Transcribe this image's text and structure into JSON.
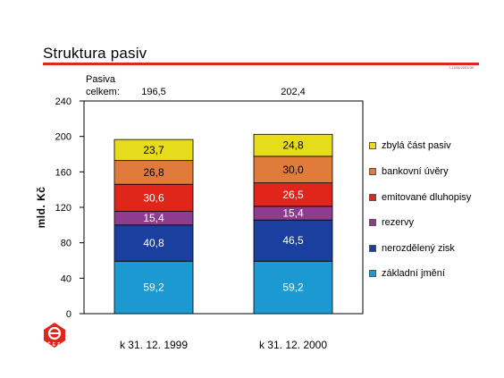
{
  "page": {
    "title": "Struktura pasiv",
    "code_text": "7-1034/2001/30"
  },
  "logo": {
    "text": "ČEZ"
  },
  "colors": {
    "title_rule": "#e0261a",
    "segments": [
      "#1a9ad0",
      "#1b3f9e",
      "#8e3d8e",
      "#e0261a",
      "#e07b3c",
      "#e6dc1c"
    ]
  },
  "chart_data": {
    "type": "bar",
    "stacked": true,
    "title": "Struktura pasiv",
    "ylabel": "mld. Kč",
    "ylim": [
      0,
      240
    ],
    "yticks": [
      "0",
      "40",
      "80",
      "120",
      "160",
      "200",
      "240"
    ],
    "categories": [
      "k 31. 12. 1999",
      "k 31. 12. 2000"
    ],
    "totals_label": "Pasiva celkem:",
    "totals": [
      "196,5",
      "202,4"
    ],
    "series": [
      {
        "name": "základní jmění",
        "values": [
          59.2,
          59.2
        ],
        "labels": [
          "59,2",
          "59,2"
        ]
      },
      {
        "name": "nerozdělený zisk",
        "values": [
          40.8,
          46.5
        ],
        "labels": [
          "40,8",
          "46,5"
        ]
      },
      {
        "name": "rezervy",
        "values": [
          15.4,
          15.4
        ],
        "labels": [
          "15,4",
          "15,4"
        ]
      },
      {
        "name": "emitované dluhopisy",
        "values": [
          30.6,
          26.5
        ],
        "labels": [
          "30,6",
          "26,5"
        ]
      },
      {
        "name": "bankovní úvěry",
        "values": [
          26.8,
          30.0
        ],
        "labels": [
          "26,8",
          "30,0"
        ]
      },
      {
        "name": "zbylá část pasiv",
        "values": [
          23.7,
          24.8
        ],
        "labels": [
          "23,7",
          "24,8"
        ]
      }
    ],
    "legend_position": "right"
  }
}
